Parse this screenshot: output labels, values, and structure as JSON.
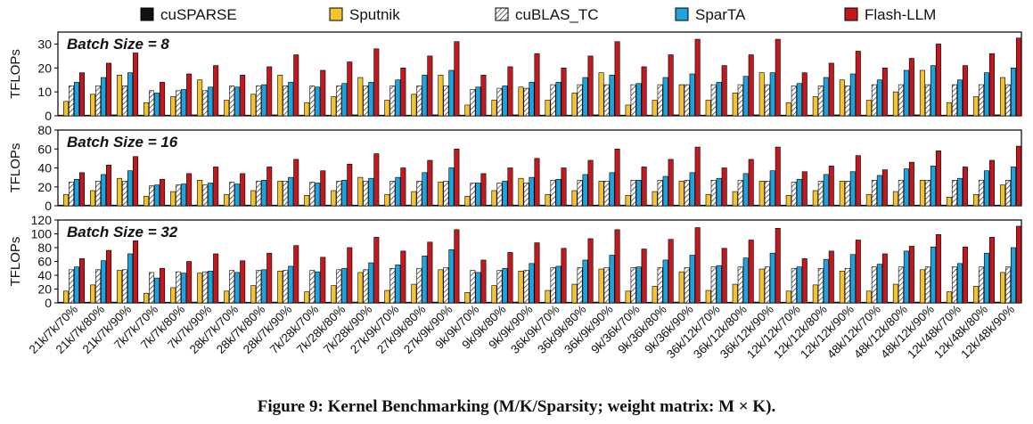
{
  "caption": "Figure 9: Kernel Benchmarking (M/K/Sparsity; weight matrix: M × K).",
  "colors": {
    "cuSPARSE": "#111111",
    "Sputnik": "#f5c230",
    "cuBLAS_TC": "#ffffff",
    "SparTA": "#1ea3de",
    "Flash-LLM": "#c3181d"
  },
  "chart_data": [
    {
      "type": "bar",
      "title": "Batch Size = 8",
      "ylabel": "TFLOPs",
      "ylim": [
        0,
        35
      ],
      "yticks": [
        0,
        10,
        20,
        30
      ],
      "grid": false,
      "legend": "top",
      "categories": [
        "21k/7k/70%",
        "21k/7k/80%",
        "21k/7k/90%",
        "7k/7k/70%",
        "7k/7k/80%",
        "7k/7k/90%",
        "28k/7k/70%",
        "28k/7k/80%",
        "28k/7k/90%",
        "7k/28k/70%",
        "7k/28k/80%",
        "7k/28k/90%",
        "27k/9k/70%",
        "27k/9k/80%",
        "27k/9k/90%",
        "9k/9k/70%",
        "9k/9k/80%",
        "9k/9k/90%",
        "36k/9k/70%",
        "36k/9k/80%",
        "36k/9k/90%",
        "9k/36k/70%",
        "9k/36k/80%",
        "9k/36k/90%",
        "36k/12k/70%",
        "36k/12k/80%",
        "36k/12k/90%",
        "12k/12k/70%",
        "12k/12k/80%",
        "12k/12k/90%",
        "48k/12k/70%",
        "48k/12k/80%",
        "48k/12k/90%",
        "12k/48k/70%",
        "12k/48k/80%",
        "12k/48k/90%"
      ],
      "series": [
        {
          "name": "cuSPARSE",
          "values": [
            0.3,
            0.3,
            0.4,
            0.2,
            0.3,
            0.4,
            0.3,
            0.3,
            0.4,
            0.3,
            0.3,
            0.4,
            0.3,
            0.3,
            0.4,
            0.2,
            0.3,
            0.4,
            0.3,
            0.3,
            0.4,
            0.3,
            0.3,
            0.4,
            0.3,
            0.3,
            0.4,
            0.2,
            0.3,
            0.4,
            0.3,
            0.3,
            0.4,
            0.3,
            0.3,
            0.4
          ]
        },
        {
          "name": "Sputnik",
          "values": [
            6,
            9,
            17,
            5.5,
            8,
            15,
            6.5,
            9,
            17,
            5.5,
            8,
            16,
            6.5,
            9,
            17,
            4.5,
            6.5,
            12,
            6.5,
            9.5,
            18,
            4.5,
            6.5,
            13,
            6.5,
            9.5,
            18,
            5.5,
            8,
            15,
            6.5,
            10,
            19,
            5.5,
            8,
            16
          ]
        },
        {
          "name": "cuBLAS_TC",
          "values": [
            12.5,
            12.5,
            12.5,
            10.5,
            10.5,
            10.5,
            12.5,
            12.5,
            12.5,
            12.5,
            12.5,
            12.5,
            12.5,
            12.5,
            12.5,
            11,
            11.5,
            11.5,
            13,
            13,
            13,
            13,
            13,
            13,
            13,
            13,
            13,
            12.5,
            12.5,
            12.5,
            13,
            13,
            13,
            13,
            13,
            13
          ]
        },
        {
          "name": "SparTA",
          "values": [
            14,
            16,
            18,
            9.5,
            11,
            12,
            12,
            13,
            14,
            12,
            13.5,
            14,
            15,
            17,
            19,
            12,
            12.5,
            14,
            14,
            16,
            17,
            13.5,
            16,
            17.5,
            14,
            16.5,
            18,
            13.5,
            16,
            17.5,
            15,
            19,
            21,
            15,
            18,
            20
          ]
        },
        {
          "name": "Flash-LLM",
          "values": [
            18,
            22,
            27,
            14,
            17.5,
            21,
            17,
            20.5,
            25.5,
            19,
            22.5,
            28,
            20,
            25,
            31,
            17,
            20.5,
            26,
            20,
            25,
            31,
            20.5,
            25.5,
            32,
            21,
            25.5,
            32,
            18,
            22,
            27,
            20,
            24,
            30,
            21,
            26,
            32.5
          ]
        }
      ]
    },
    {
      "type": "bar",
      "title": "Batch Size = 16",
      "ylabel": "TFLOPs",
      "ylim": [
        0,
        80
      ],
      "yticks": [
        0,
        20,
        40,
        60,
        80
      ],
      "grid": false,
      "categories": [
        "21k/7k/70%",
        "21k/7k/80%",
        "21k/7k/90%",
        "7k/7k/70%",
        "7k/7k/80%",
        "7k/7k/90%",
        "28k/7k/70%",
        "28k/7k/80%",
        "28k/7k/90%",
        "7k/28k/70%",
        "7k/28k/80%",
        "7k/28k/90%",
        "27k/9k/70%",
        "27k/9k/80%",
        "27k/9k/90%",
        "9k/9k/70%",
        "9k/9k/80%",
        "9k/9k/90%",
        "36k/9k/70%",
        "36k/9k/80%",
        "36k/9k/90%",
        "9k/36k/70%",
        "9k/36k/80%",
        "9k/36k/90%",
        "36k/12k/70%",
        "36k/12k/80%",
        "36k/12k/90%",
        "12k/12k/70%",
        "12k/12k/80%",
        "12k/12k/90%",
        "48k/12k/70%",
        "48k/12k/80%",
        "48k/12k/90%",
        "12k/48k/70%",
        "12k/48k/80%",
        "12k/48k/90%"
      ],
      "series": [
        {
          "name": "cuSPARSE",
          "values": [
            0.5,
            0.6,
            0.7,
            0.4,
            0.5,
            0.6,
            0.5,
            0.6,
            0.7,
            0.5,
            0.6,
            0.7,
            0.5,
            0.6,
            0.7,
            0.4,
            0.5,
            0.6,
            0.5,
            0.6,
            0.7,
            0.5,
            0.6,
            0.7,
            0.5,
            0.6,
            0.7,
            0.4,
            0.5,
            0.6,
            0.5,
            0.6,
            0.7,
            0.5,
            0.6,
            0.7
          ]
        },
        {
          "name": "Sputnik",
          "values": [
            12,
            16,
            29,
            10,
            15,
            27,
            12,
            16,
            26,
            11,
            16,
            30,
            12,
            15,
            25,
            10,
            16,
            29,
            12,
            16,
            26,
            11,
            15,
            26,
            12,
            15,
            26,
            11,
            16,
            26,
            12,
            15,
            27,
            9,
            12,
            22
          ]
        },
        {
          "name": "cuBLAS_TC",
          "values": [
            25,
            26,
            26,
            21,
            22,
            22,
            25,
            26,
            26,
            25,
            26,
            26,
            26,
            26,
            26,
            24,
            24,
            24,
            27,
            27,
            26,
            27,
            27,
            27,
            27,
            27,
            26,
            25,
            26,
            26,
            27,
            27,
            27,
            27,
            27,
            27
          ]
        },
        {
          "name": "SparTA",
          "values": [
            28,
            33,
            37,
            22,
            23,
            24,
            23,
            27,
            30,
            24,
            27,
            29,
            30,
            35,
            40,
            24,
            26,
            30,
            28,
            33,
            35,
            27,
            31,
            35,
            29,
            34,
            37,
            28,
            33,
            36,
            32,
            39,
            42,
            29,
            37,
            41
          ]
        },
        {
          "name": "Flash-LLM",
          "values": [
            35,
            43,
            52,
            28,
            34,
            41,
            34,
            41,
            49,
            37,
            44,
            55,
            40,
            48,
            60,
            34,
            40,
            50,
            40,
            48,
            60,
            41,
            49,
            62,
            40,
            49,
            62,
            36,
            42,
            53,
            38,
            46,
            58,
            41,
            48,
            63
          ]
        }
      ]
    },
    {
      "type": "bar",
      "title": "Batch Size = 32",
      "ylabel": "TFLOPs",
      "ylim": [
        0,
        120
      ],
      "yticks": [
        0,
        20,
        40,
        60,
        80,
        100,
        120
      ],
      "grid": false,
      "categories": [
        "21k/7k/70%",
        "21k/7k/80%",
        "21k/7k/90%",
        "7k/7k/70%",
        "7k/7k/80%",
        "7k/7k/90%",
        "28k/7k/70%",
        "28k/7k/80%",
        "28k/7k/90%",
        "7k/28k/70%",
        "7k/28k/80%",
        "7k/28k/90%",
        "27k/9k/70%",
        "27k/9k/80%",
        "27k/9k/90%",
        "9k/9k/70%",
        "9k/9k/80%",
        "9k/9k/90%",
        "36k/9k/70%",
        "36k/9k/80%",
        "36k/9k/90%",
        "9k/36k/70%",
        "9k/36k/80%",
        "9k/36k/90%",
        "36k/12k/70%",
        "36k/12k/80%",
        "36k/12k/90%",
        "12k/12k/70%",
        "12k/12k/80%",
        "12k/12k/90%",
        "48k/12k/70%",
        "48k/12k/80%",
        "48k/12k/90%",
        "12k/48k/70%",
        "12k/48k/80%",
        "12k/48k/90%"
      ],
      "series": [
        {
          "name": "cuSPARSE",
          "values": [
            1,
            1,
            1.2,
            0.8,
            1,
            1.2,
            1,
            1,
            1.2,
            1,
            1,
            1.2,
            1,
            1,
            1.2,
            0.8,
            1,
            1.2,
            1,
            1,
            1.2,
            1,
            1,
            1.2,
            1,
            1,
            1.2,
            0.8,
            1,
            1.2,
            1,
            1,
            1.2,
            1,
            1,
            1.2
          ]
        },
        {
          "name": "Sputnik",
          "values": [
            17,
            26,
            47,
            14,
            22,
            43,
            17,
            25,
            46,
            16,
            25,
            44,
            18,
            27,
            48,
            15,
            25,
            46,
            18,
            27,
            49,
            17,
            24,
            45,
            18,
            27,
            49,
            17,
            26,
            46,
            17,
            27,
            48,
            16,
            24,
            44
          ]
        },
        {
          "name": "cuBLAS_TC",
          "values": [
            48,
            48,
            48,
            44,
            45,
            45,
            47,
            47,
            47,
            47,
            48,
            48,
            50,
            50,
            51,
            47,
            47,
            47,
            51,
            51,
            51,
            51,
            51,
            51,
            52,
            52,
            52,
            50,
            50,
            50,
            52,
            52,
            52,
            52,
            52,
            52
          ]
        },
        {
          "name": "SparTA",
          "values": [
            52,
            61,
            71,
            36,
            43,
            46,
            44,
            48,
            53,
            45,
            50,
            58,
            55,
            68,
            77,
            44,
            50,
            57,
            53,
            62,
            69,
            52,
            62,
            69,
            54,
            65,
            72,
            52,
            63,
            70,
            56,
            75,
            81,
            57,
            72,
            80
          ]
        },
        {
          "name": "Flash-LLM",
          "values": [
            64,
            76,
            90,
            50,
            60,
            71,
            61,
            72,
            83,
            66,
            80,
            95,
            75,
            88,
            106,
            62,
            73,
            87,
            79,
            93,
            106,
            78,
            92,
            109,
            79,
            91,
            108,
            64,
            75,
            91,
            71,
            82,
            99,
            81,
            95,
            111
          ]
        }
      ]
    }
  ]
}
